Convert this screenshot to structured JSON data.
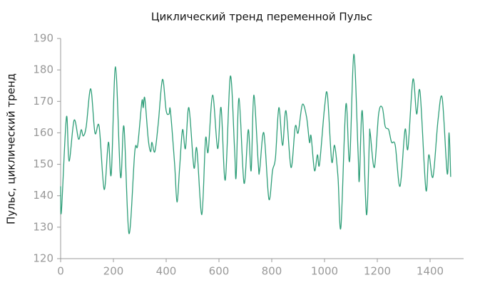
{
  "chart_data": {
    "type": "line",
    "title": "Циклический тренд переменной Пульс",
    "y_label": "Пульс, циклический тренд",
    "x": [
      0,
      3,
      22,
      32,
      51,
      68,
      78,
      86,
      97,
      114,
      130,
      146,
      165,
      181,
      192,
      208,
      227,
      240,
      259,
      281,
      292,
      308,
      313,
      319,
      332,
      341,
      346,
      357,
      370,
      386,
      400,
      411,
      416,
      432,
      441,
      451,
      462,
      473,
      486,
      505,
      516,
      535,
      549,
      559,
      576,
      595,
      608,
      624,
      643,
      659,
      665,
      676,
      695,
      711,
      722,
      732,
      749,
      754,
      770,
      789,
      803,
      814,
      827,
      841,
      854,
      873,
      889,
      900,
      916,
      932,
      943,
      949,
      962,
      973,
      981,
      1000,
      1011,
      1027,
      1038,
      1051,
      1062,
      1081,
      1095,
      1111,
      1127,
      1132,
      1143,
      1159,
      1170,
      1173,
      1189,
      1205,
      1219,
      1230,
      1243,
      1254,
      1268,
      1286,
      1305,
      1316,
      1335,
      1349,
      1362,
      1384,
      1395,
      1411,
      1430,
      1446,
      1465,
      1472,
      1478
    ],
    "series": [
      {
        "name": "Пульс",
        "color": "#2e9e78",
        "values": [
          143,
          135,
          165,
          151,
          164,
          158,
          161,
          159,
          162,
          174,
          160,
          162,
          142,
          157,
          147,
          181,
          146,
          162,
          128,
          154,
          156,
          170,
          168,
          171,
          158,
          154,
          157,
          154,
          163,
          177,
          167,
          166,
          167,
          150,
          138,
          149,
          161,
          155,
          168,
          149,
          155,
          134,
          158,
          154,
          172,
          155,
          168,
          145,
          178,
          155,
          146,
          171,
          144,
          161,
          148,
          172,
          150,
          148,
          160,
          139,
          148,
          152,
          168,
          156,
          167,
          149,
          162,
          160,
          169,
          165,
          157,
          159,
          148,
          153,
          150,
          168,
          172,
          151,
          156,
          146,
          130,
          169,
          151,
          185,
          154,
          145,
          167,
          134,
          158,
          160,
          149,
          166,
          168,
          162,
          161,
          157,
          156,
          143,
          161,
          155,
          177,
          166,
          173,
          142,
          153,
          146,
          164,
          171,
          147,
          160,
          146
        ]
      }
    ],
    "xlim": [
      0,
      1527
    ],
    "xticks": [
      0,
      200,
      400,
      600,
      800,
      1000,
      1200,
      1400
    ],
    "ylim": [
      120,
      190
    ],
    "yticks": [
      120,
      130,
      140,
      150,
      160,
      170,
      180,
      190
    ],
    "grid": false
  }
}
